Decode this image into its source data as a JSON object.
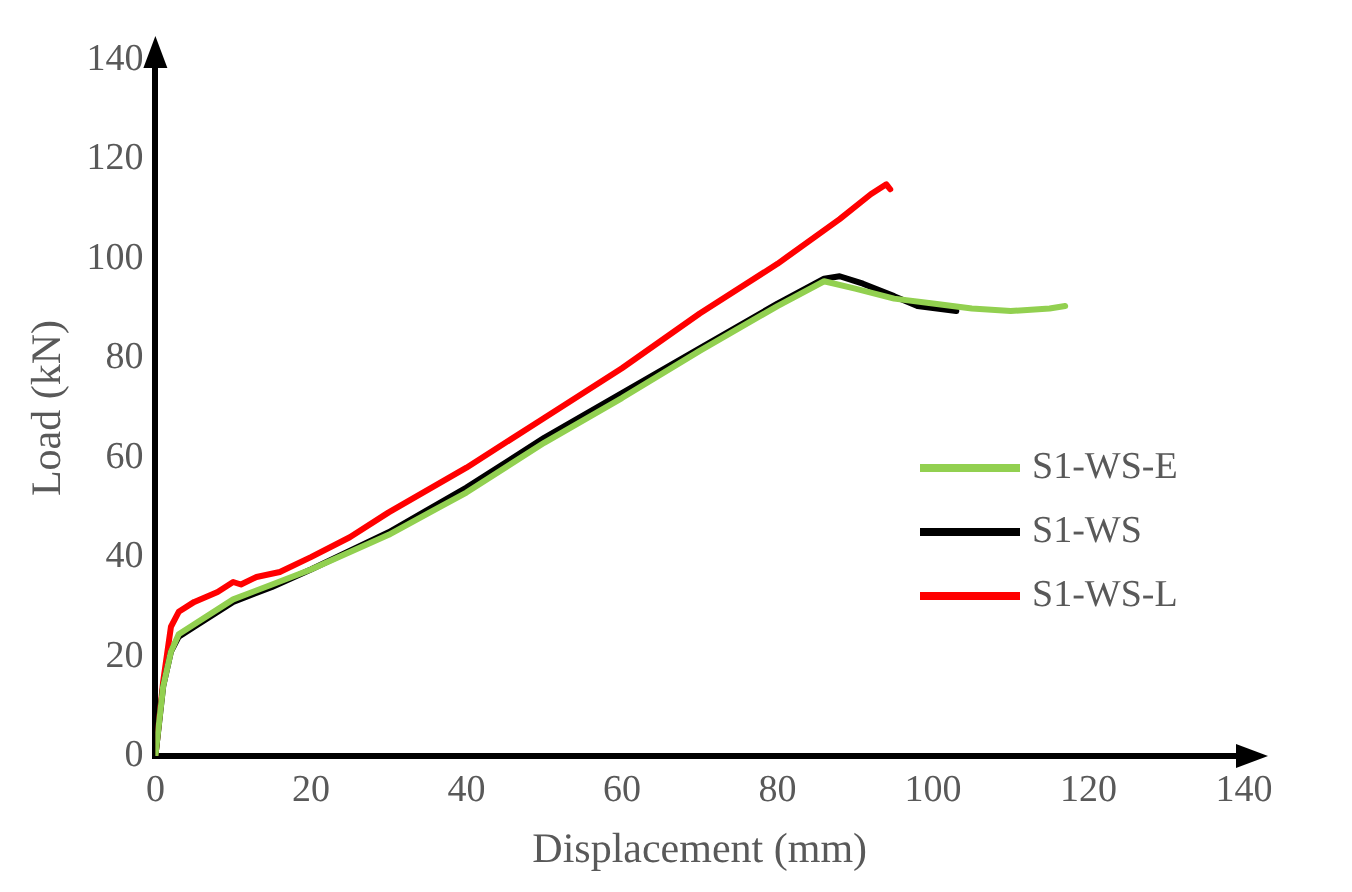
{
  "chart_data": {
    "type": "line",
    "xlabel": "Displacement (mm)",
    "ylabel": "Load (kN)",
    "xlim": [
      0,
      140
    ],
    "xticks": [
      0,
      20,
      40,
      60,
      80,
      100,
      120,
      140
    ],
    "ylim": [
      0,
      140
    ],
    "yticks": [
      0,
      20,
      40,
      60,
      80,
      100,
      120,
      140
    ],
    "grid": false,
    "legend": "right",
    "marker": "none",
    "line_style": "solid",
    "series": [
      {
        "name": "S1-WS-E",
        "color": "#92d050",
        "x": [
          0,
          1,
          2,
          3,
          5,
          10,
          15,
          20,
          30,
          40,
          50,
          60,
          70,
          80,
          86,
          90,
          95,
          100,
          105,
          110,
          115,
          117
        ],
        "values": [
          0,
          14,
          21,
          24.5,
          26.5,
          31.5,
          34.5,
          37.5,
          44.5,
          53,
          63,
          72,
          81.5,
          90.5,
          95.5,
          94,
          92,
          91,
          90,
          89.5,
          90,
          90.5
        ]
      },
      {
        "name": "S1-WS",
        "color": "#000000",
        "x": [
          0,
          1,
          2,
          3,
          5,
          10,
          15,
          20,
          30,
          40,
          50,
          60,
          70,
          80,
          86,
          88,
          91,
          95,
          98,
          103
        ],
        "values": [
          0,
          14,
          21,
          24,
          26,
          31,
          34,
          37.5,
          45,
          54,
          64,
          73,
          82,
          91,
          96,
          96.5,
          95,
          92.5,
          90.5,
          89.5
        ]
      },
      {
        "name": "S1-WS-L",
        "color": "#ff0000",
        "x": [
          0,
          1,
          2,
          3,
          5,
          8,
          10,
          11,
          13,
          16,
          20,
          25,
          30,
          40,
          50,
          60,
          70,
          80,
          88,
          92,
          94,
          94.5
        ],
        "values": [
          0,
          15,
          26,
          29,
          31,
          33,
          35,
          34.5,
          36,
          37,
          40,
          44,
          49,
          58,
          68,
          78,
          89,
          99,
          108,
          113,
          115,
          114
        ]
      }
    ]
  }
}
